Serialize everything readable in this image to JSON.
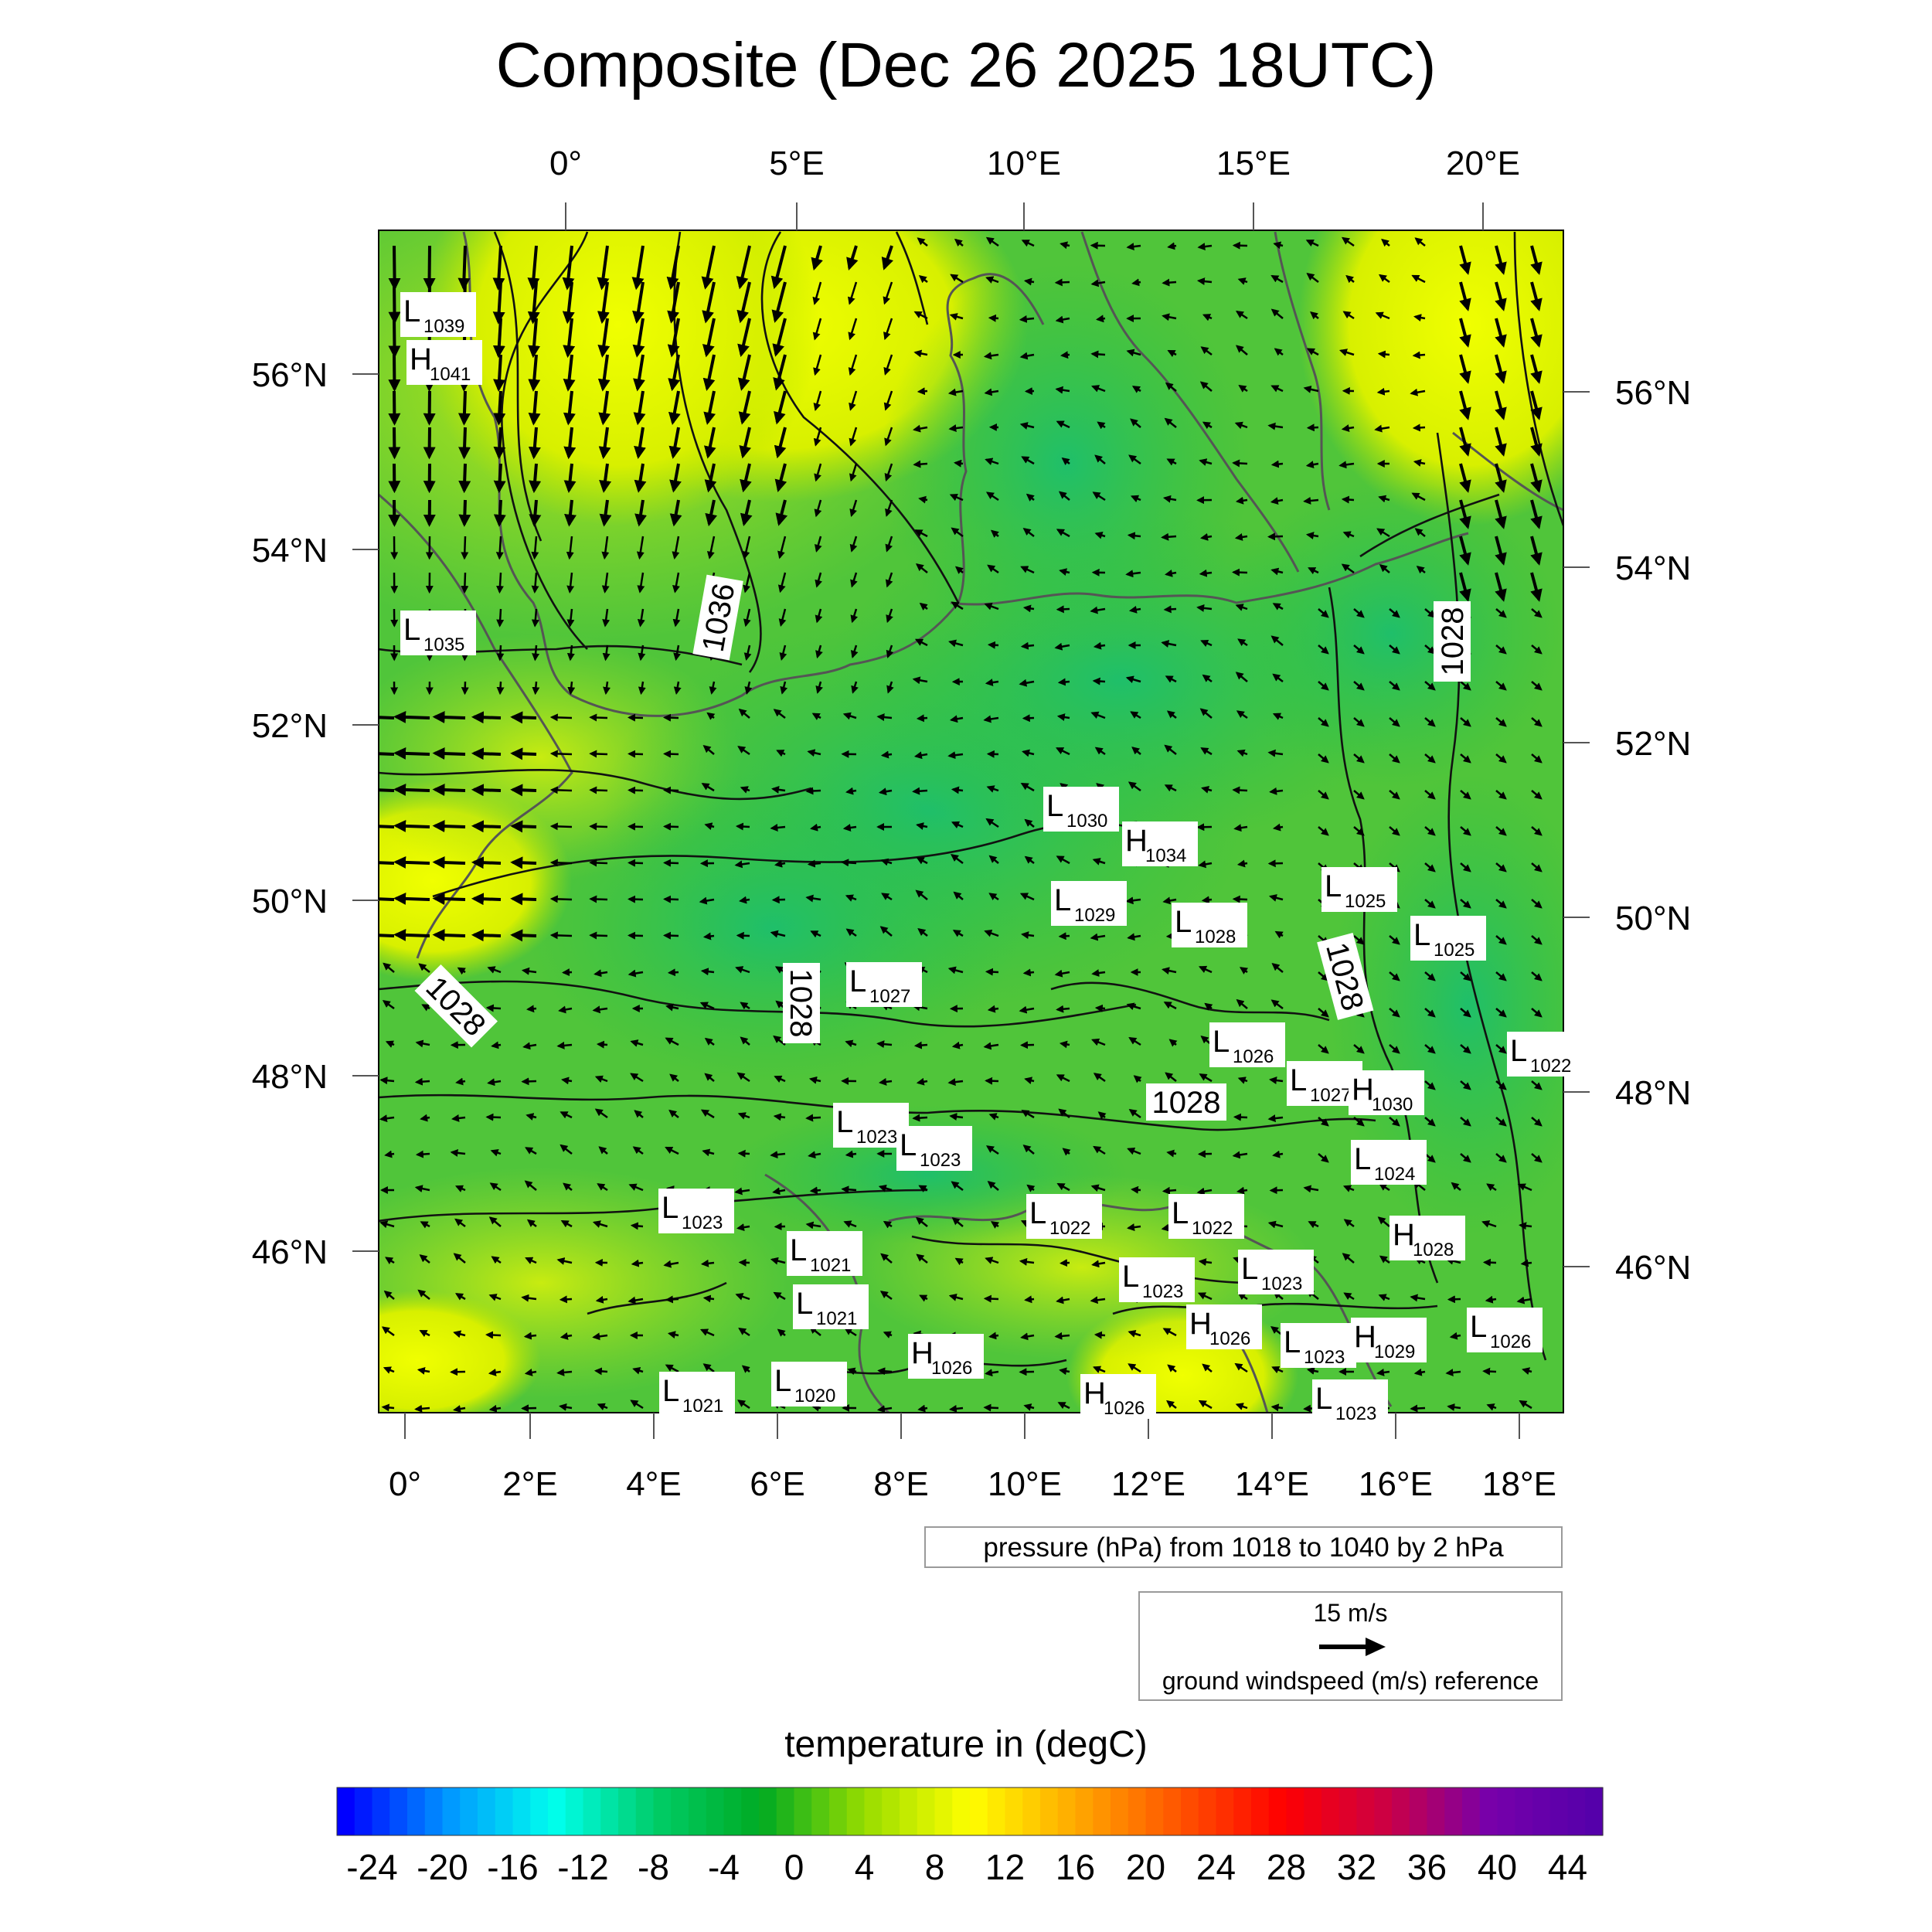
{
  "title": "Composite (Dec 26 2025 18UTC)",
  "map": {
    "top_lon_labels": [
      "0°",
      "5°E",
      "10°E",
      "15°E",
      "20°E"
    ],
    "bottom_lon_labels": [
      "0°",
      "2°E",
      "4°E",
      "6°E",
      "8°E",
      "10°E",
      "12°E",
      "14°E",
      "16°E",
      "18°E"
    ],
    "left_lat_labels": [
      "56°N",
      "54°N",
      "52°N",
      "50°N",
      "48°N",
      "46°N"
    ],
    "right_lat_labels": [
      "56°N",
      "54°N",
      "52°N",
      "50°N",
      "48°N",
      "46°N"
    ],
    "isobar_labels": [
      "1036",
      "1028",
      "1028",
      "1028",
      "1028",
      "1028"
    ],
    "pressure_centers": [
      {
        "type": "L",
        "value": "1039"
      },
      {
        "type": "H",
        "value": "1041"
      },
      {
        "type": "L",
        "value": "1035"
      },
      {
        "type": "L",
        "value": "1030"
      },
      {
        "type": "H",
        "value": "1034"
      },
      {
        "type": "L",
        "value": "1029"
      },
      {
        "type": "L",
        "value": "1028"
      },
      {
        "type": "L",
        "value": "1025"
      },
      {
        "type": "L",
        "value": "1025"
      },
      {
        "type": "L",
        "value": "1027"
      },
      {
        "type": "L",
        "value": "1026"
      },
      {
        "type": "L",
        "value": "1027"
      },
      {
        "type": "H",
        "value": "1030"
      },
      {
        "type": "L",
        "value": "1022"
      },
      {
        "type": "L",
        "value": "1023"
      },
      {
        "type": "L",
        "value": "1023"
      },
      {
        "type": "L",
        "value": "1024"
      },
      {
        "type": "L",
        "value": "1023"
      },
      {
        "type": "L",
        "value": "1022"
      },
      {
        "type": "L",
        "value": "1022"
      },
      {
        "type": "H",
        "value": "1028"
      },
      {
        "type": "L",
        "value": "1021"
      },
      {
        "type": "L",
        "value": "1023"
      },
      {
        "type": "L",
        "value": "1023"
      },
      {
        "type": "L",
        "value": "1021"
      },
      {
        "type": "H",
        "value": "1026"
      },
      {
        "type": "L",
        "value": "1023"
      },
      {
        "type": "H",
        "value": "1029"
      },
      {
        "type": "L",
        "value": "1026"
      },
      {
        "type": "H",
        "value": "1026"
      },
      {
        "type": "L",
        "value": "1020"
      },
      {
        "type": "L",
        "value": "1021"
      },
      {
        "type": "H",
        "value": "1026"
      },
      {
        "type": "L",
        "value": "1023"
      }
    ]
  },
  "pressure_legend": "pressure (hPa) from 1018 to 1040 by 2 hPa",
  "wind_legend": {
    "speed": "15 m/s",
    "caption": "ground windspeed (m/s) reference"
  },
  "colorbar": {
    "title": "temperature in (degC)",
    "labels": [
      "-24",
      "-20",
      "-16",
      "-12",
      "-8",
      "-4",
      "0",
      "4",
      "8",
      "12",
      "16",
      "20",
      "24",
      "28",
      "32",
      "36",
      "40",
      "44"
    ],
    "min": -26,
    "max": 46,
    "step": 2,
    "stops": [
      "#0000ff",
      "#0099ff",
      "#00ffee",
      "#00cc66",
      "#00aa22",
      "#99dd00",
      "#ffff00",
      "#ffaa00",
      "#ff5500",
      "#ff0000",
      "#cc0044",
      "#7700aa",
      "#5500aa"
    ]
  },
  "colors": {
    "field_green": "#3fbf3a",
    "field_dark_green": "#22b04a",
    "field_yellowgreen": "#a9e21e",
    "field_yellow": "#e6f500",
    "coast": "#555555"
  }
}
